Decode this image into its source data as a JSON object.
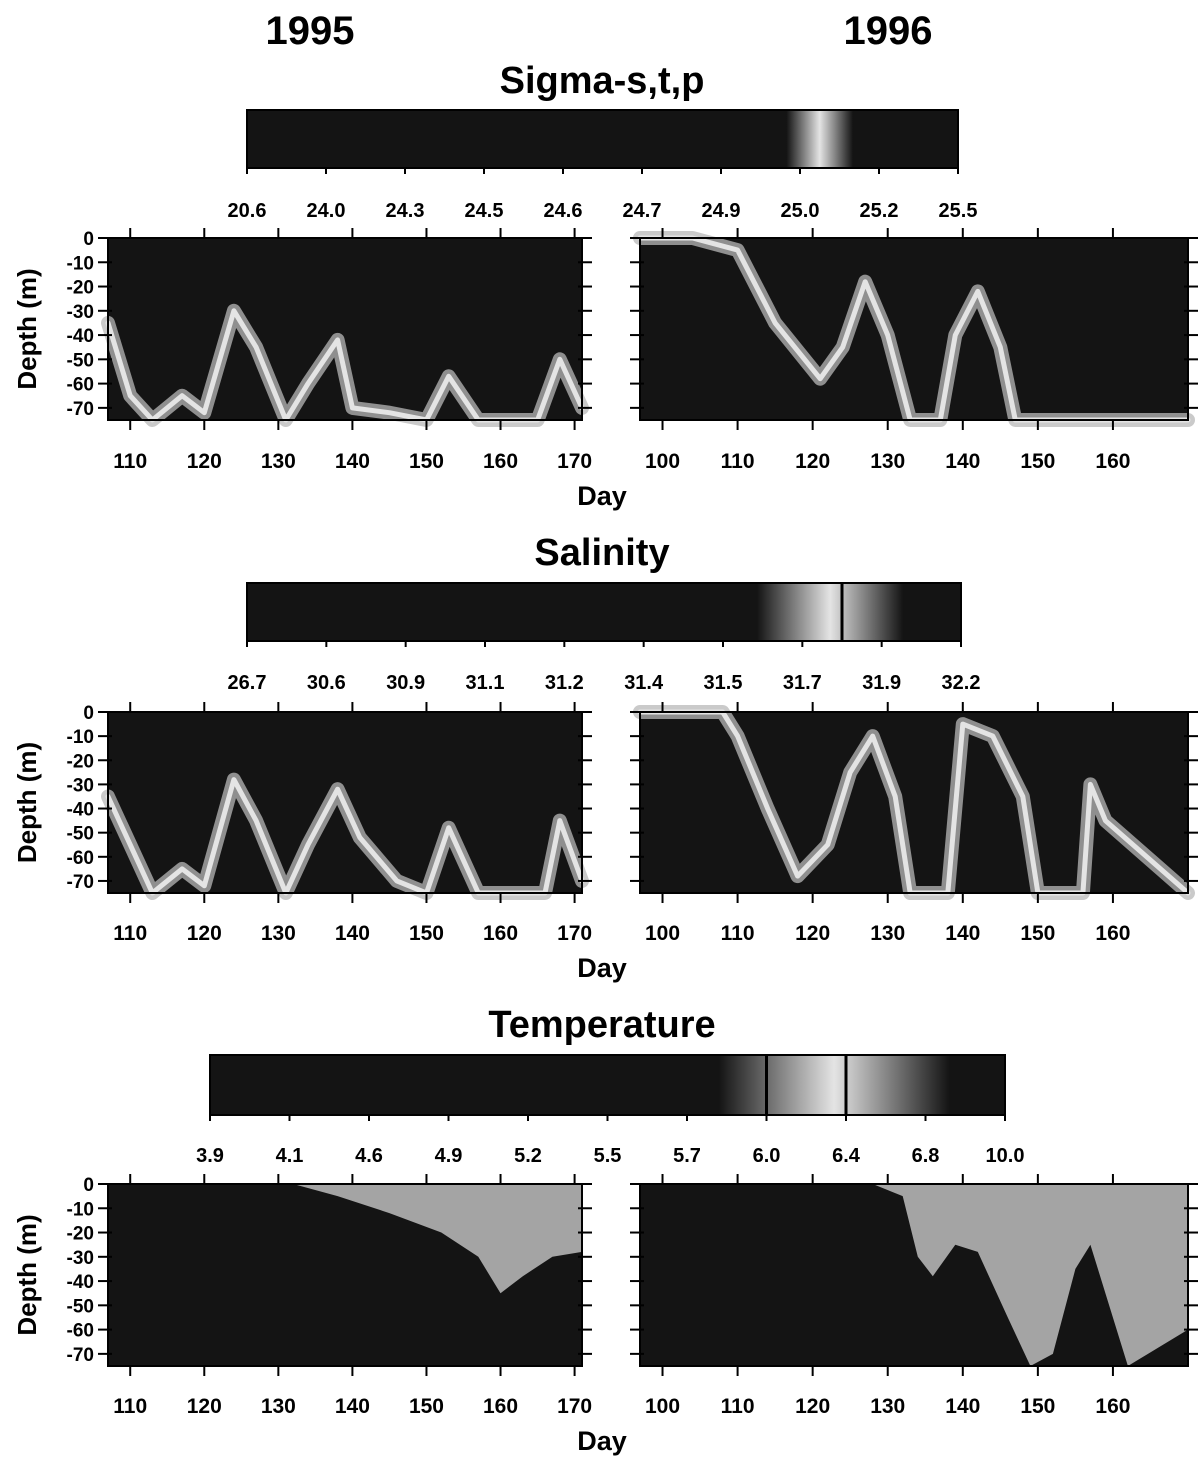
{
  "years": {
    "left": "1995",
    "right": "1996"
  },
  "colors": {
    "field_dark": "#141414",
    "field_light": "#e4e4e4",
    "ink": "#000000"
  },
  "chart_data": [
    {
      "type": "heatmap",
      "title": "Sigma-s,t,p",
      "colorbar": {
        "labels": [
          "20.6",
          "24.0",
          "24.3",
          "24.5",
          "24.6",
          "24.7",
          "24.9",
          "25.0",
          "25.2",
          "25.5"
        ],
        "light_band": [
          7.1,
          7.4
        ],
        "contour_lines": []
      },
      "ylabel": "Depth (m)",
      "yticks": [
        0,
        -10,
        -20,
        -30,
        -40,
        -50,
        -60,
        -70
      ],
      "ylim": [
        -75,
        0
      ],
      "xlabel": "Day",
      "panels": [
        {
          "year": "1995",
          "xlim": [
            107,
            171
          ],
          "xticks": [
            110,
            120,
            130,
            140,
            150,
            160,
            170
          ],
          "bright_profile": [
            [
              107,
              -35
            ],
            [
              110,
              -65
            ],
            [
              113,
              -75
            ],
            [
              117,
              -65
            ],
            [
              120,
              -72
            ],
            [
              124,
              -30
            ],
            [
              127,
              -45
            ],
            [
              131,
              -75
            ],
            [
              134,
              -60
            ],
            [
              138,
              -42
            ],
            [
              140,
              -70
            ],
            [
              145,
              -72
            ],
            [
              150,
              -75
            ],
            [
              153,
              -57
            ],
            [
              157,
              -75
            ],
            [
              165,
              -75
            ],
            [
              168,
              -50
            ],
            [
              171,
              -70
            ]
          ]
        },
        {
          "year": "1996",
          "xlim": [
            97,
            170
          ],
          "xticks": [
            100,
            110,
            120,
            130,
            140,
            150,
            160
          ],
          "bright_profile": [
            [
              97,
              0
            ],
            [
              104,
              0
            ],
            [
              110,
              -5
            ],
            [
              115,
              -35
            ],
            [
              121,
              -58
            ],
            [
              124,
              -45
            ],
            [
              127,
              -18
            ],
            [
              130,
              -40
            ],
            [
              133,
              -75
            ],
            [
              137,
              -75
            ],
            [
              139,
              -40
            ],
            [
              142,
              -22
            ],
            [
              145,
              -45
            ],
            [
              147,
              -75
            ],
            [
              170,
              -75
            ]
          ]
        }
      ]
    },
    {
      "type": "heatmap",
      "title": "Salinity",
      "colorbar": {
        "labels": [
          "26.7",
          "30.6",
          "30.9",
          "31.1",
          "31.2",
          "31.4",
          "31.5",
          "31.7",
          "31.9",
          "32.2"
        ],
        "light_band": [
          6.7,
          8.0
        ],
        "contour_lines": [
          7.5
        ]
      },
      "ylabel": "Depth (m)",
      "yticks": [
        0,
        -10,
        -20,
        -30,
        -40,
        -50,
        -60,
        -70
      ],
      "ylim": [
        -75,
        0
      ],
      "xlabel": "Day",
      "panels": [
        {
          "year": "1995",
          "xlim": [
            107,
            171
          ],
          "xticks": [
            110,
            120,
            130,
            140,
            150,
            160,
            170
          ],
          "bright_profile": [
            [
              107,
              -35
            ],
            [
              110,
              -55
            ],
            [
              113,
              -75
            ],
            [
              117,
              -65
            ],
            [
              120,
              -72
            ],
            [
              124,
              -28
            ],
            [
              127,
              -45
            ],
            [
              131,
              -75
            ],
            [
              134,
              -55
            ],
            [
              138,
              -32
            ],
            [
              141,
              -52
            ],
            [
              146,
              -70
            ],
            [
              150,
              -75
            ],
            [
              153,
              -48
            ],
            [
              157,
              -75
            ],
            [
              166,
              -75
            ],
            [
              168,
              -45
            ],
            [
              171,
              -70
            ]
          ]
        },
        {
          "year": "1996",
          "xlim": [
            97,
            170
          ],
          "xticks": [
            100,
            110,
            120,
            130,
            140,
            150,
            160
          ],
          "bright_profile": [
            [
              97,
              0
            ],
            [
              108,
              0
            ],
            [
              110,
              -10
            ],
            [
              114,
              -40
            ],
            [
              118,
              -68
            ],
            [
              122,
              -55
            ],
            [
              125,
              -25
            ],
            [
              128,
              -10
            ],
            [
              131,
              -35
            ],
            [
              133,
              -75
            ],
            [
              138,
              -75
            ],
            [
              140,
              -5
            ],
            [
              144,
              -10
            ],
            [
              148,
              -35
            ],
            [
              150,
              -75
            ],
            [
              156,
              -75
            ],
            [
              157,
              -30
            ],
            [
              159,
              -45
            ],
            [
              170,
              -75
            ]
          ]
        }
      ]
    },
    {
      "type": "heatmap",
      "title": "Temperature",
      "colorbar": {
        "labels": [
          "3.9",
          "4.1",
          "4.6",
          "4.9",
          "5.2",
          "5.5",
          "5.7",
          "6.0",
          "6.4",
          "6.8",
          "10.0"
        ],
        "light_band": [
          6.7,
          9.0
        ],
        "contour_lines": [
          7.0,
          8.0
        ]
      },
      "ylabel": "Depth (m)",
      "yticks": [
        0,
        -10,
        -20,
        -30,
        -40,
        -50,
        -60,
        -70
      ],
      "ylim": [
        -75,
        0
      ],
      "xlabel": "Day",
      "panels": [
        {
          "year": "1995",
          "xlim": [
            107,
            171
          ],
          "xticks": [
            110,
            120,
            130,
            140,
            150,
            160,
            170
          ],
          "warm_bottom": [
            [
              132,
              0
            ],
            [
              138,
              -5
            ],
            [
              145,
              -12
            ],
            [
              152,
              -20
            ],
            [
              157,
              -30
            ],
            [
              160,
              -45
            ],
            [
              163,
              -38
            ],
            [
              167,
              -30
            ],
            [
              171,
              -28
            ]
          ]
        },
        {
          "year": "1996",
          "xlim": [
            97,
            170
          ],
          "xticks": [
            100,
            110,
            120,
            130,
            140,
            150,
            160
          ],
          "warm_bottom": [
            [
              128,
              0
            ],
            [
              132,
              -5
            ],
            [
              134,
              -30
            ],
            [
              136,
              -38
            ],
            [
              139,
              -25
            ],
            [
              142,
              -28
            ],
            [
              146,
              -55
            ],
            [
              149,
              -75
            ],
            [
              152,
              -70
            ],
            [
              155,
              -35
            ],
            [
              157,
              -25
            ],
            [
              159,
              -45
            ],
            [
              162,
              -75
            ],
            [
              170,
              -60
            ]
          ]
        }
      ]
    }
  ]
}
